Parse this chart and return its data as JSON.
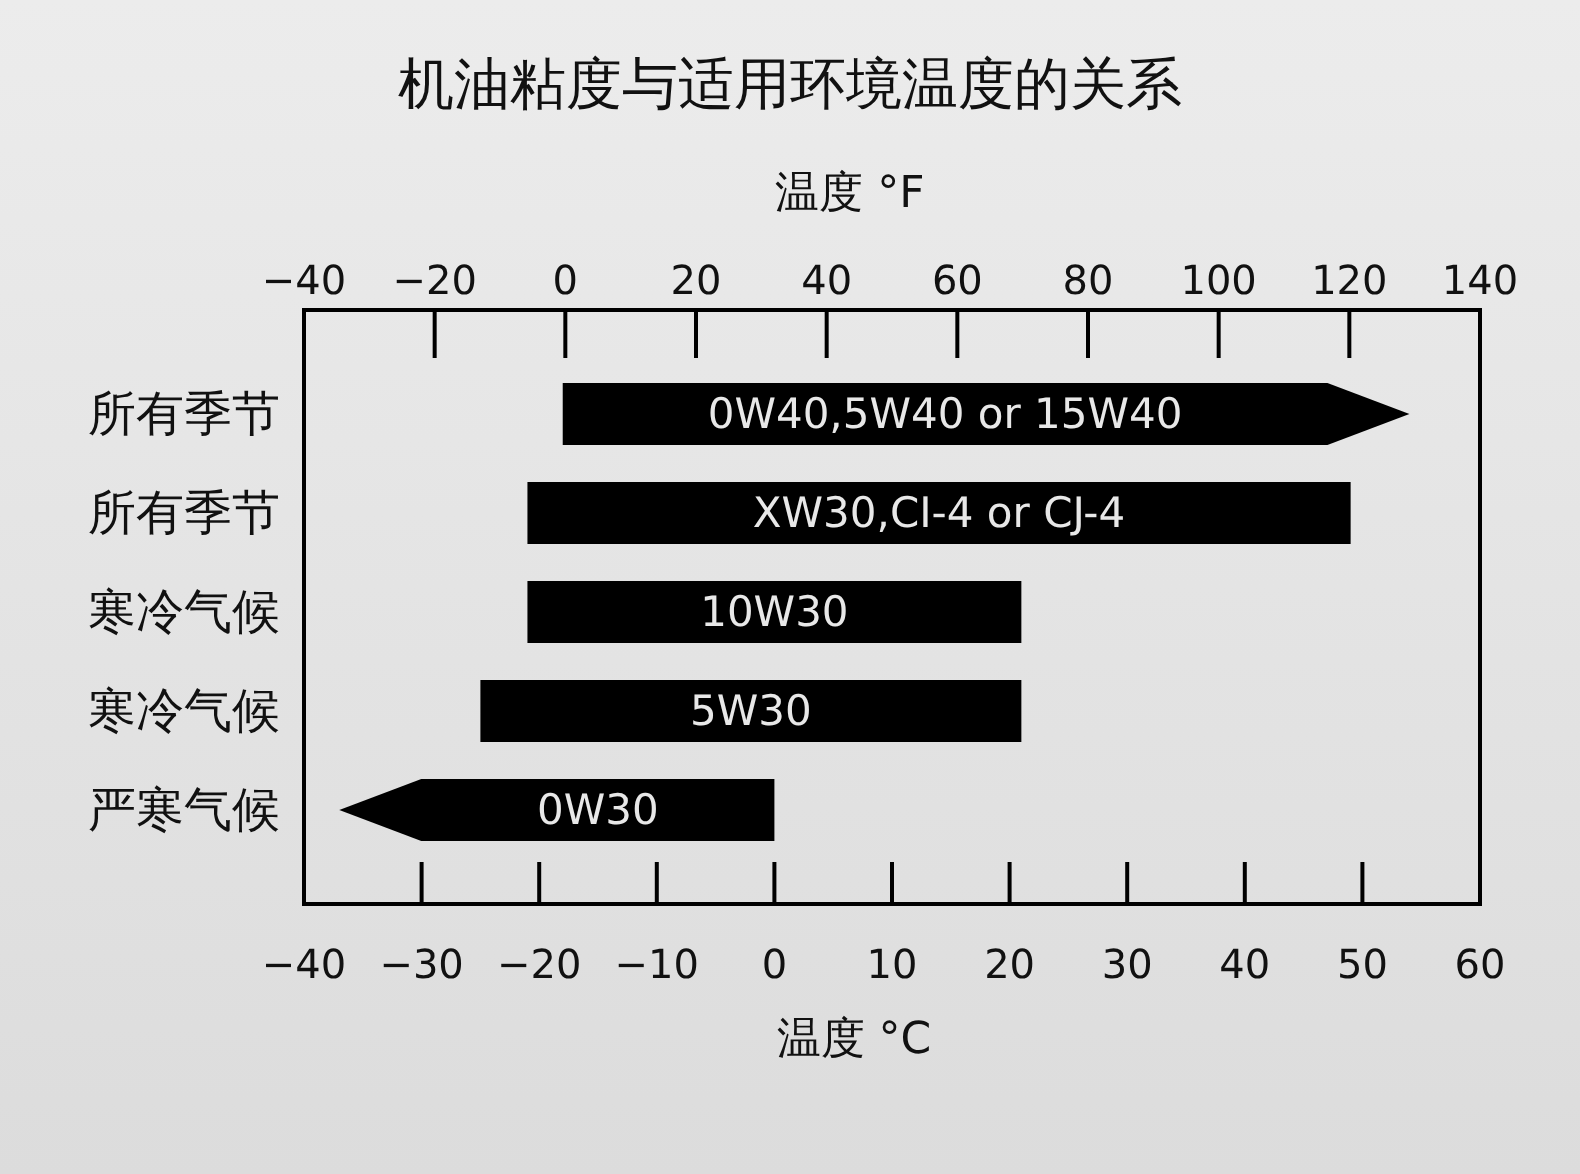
{
  "chart_data": {
    "type": "bar",
    "orientation": "horizontal",
    "title": "机油粘度与适用环境温度的关系",
    "xlabel": "温度 °C",
    "x2label": "温度 °F",
    "categories": [
      "所有季节",
      "所有季节",
      "寒冷气候",
      "寒冷气候",
      "严寒气候"
    ],
    "base": [
      -18,
      -21,
      -21,
      -25,
      -37
    ],
    "values": [
      72,
      70,
      42,
      46,
      37
    ],
    "color": "#000000",
    "annotations": [
      "0W40,5W40 or 15W40",
      "XW30,CI-4 or CJ-4",
      "10W30",
      "5W30",
      "0W30"
    ],
    "xlim": [
      -40,
      60
    ],
    "xticks": [
      -40,
      -30,
      -20,
      -10,
      0,
      10,
      20,
      30,
      40,
      50,
      60
    ],
    "x2lim": [
      -40,
      140
    ],
    "x2ticks": [
      -40,
      -20,
      0,
      20,
      40,
      60,
      80,
      100,
      120,
      140
    ]
  }
}
